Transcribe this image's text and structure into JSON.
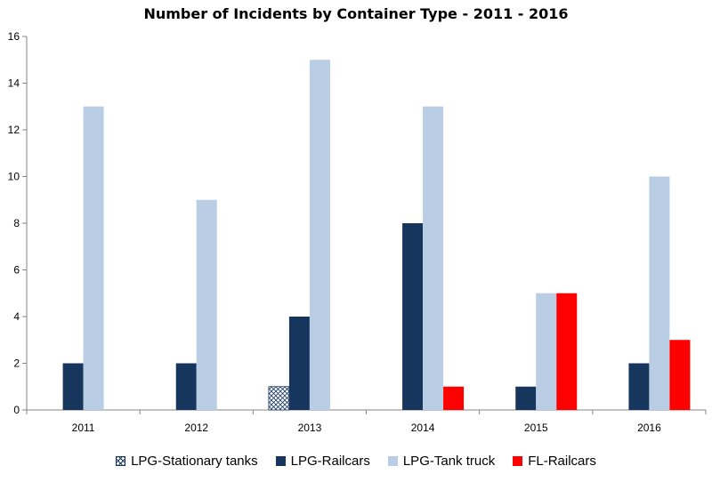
{
  "chart_data": {
    "type": "bar",
    "title": "Number of Incidents by Container Type - 2011 - 2016",
    "categories": [
      "2011",
      "2012",
      "2013",
      "2014",
      "2015",
      "2016"
    ],
    "series": [
      {
        "name": "LPG-Stationary tanks",
        "values": [
          0,
          0,
          1,
          0,
          0,
          0
        ],
        "color": "#17365d",
        "pattern": "crosshatch"
      },
      {
        "name": "LPG-Railcars",
        "values": [
          2,
          2,
          4,
          8,
          1,
          2
        ],
        "color": "#17365d"
      },
      {
        "name": "LPG-Tank truck",
        "values": [
          13,
          9,
          15,
          13,
          5,
          10
        ],
        "color": "#b9cde5"
      },
      {
        "name": "FL-Railcars",
        "values": [
          0,
          0,
          0,
          1,
          5,
          3
        ],
        "color": "#ff0000"
      }
    ],
    "ylim": [
      0,
      16
    ],
    "yticks": [
      0,
      2,
      4,
      6,
      8,
      10,
      12,
      14,
      16
    ],
    "xlabel": "",
    "ylabel": "",
    "grid": false,
    "legend_position": "bottom"
  }
}
